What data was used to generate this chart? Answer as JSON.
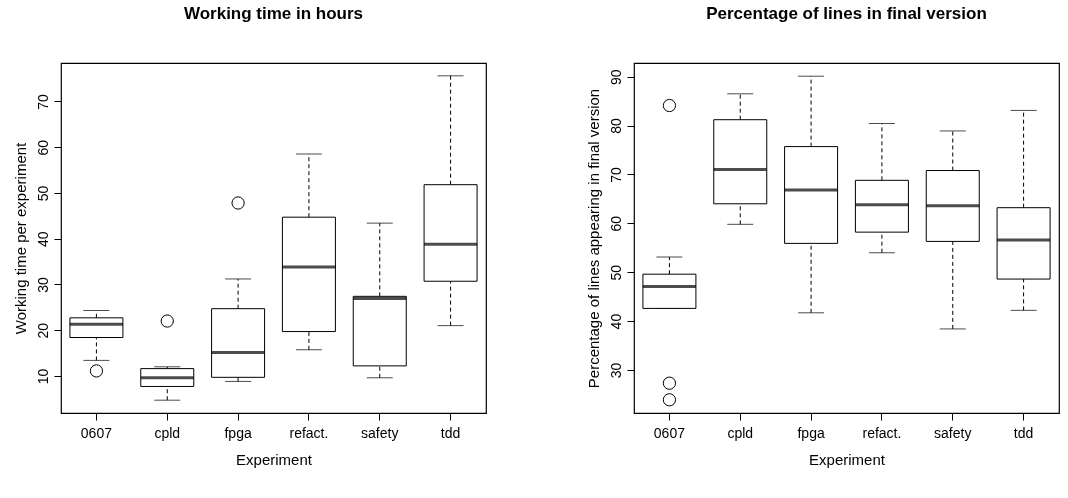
{
  "chart_data": [
    {
      "type": "box",
      "title": "Working time in hours",
      "xlabel": "Experiment",
      "ylabel": "Working time per experiment",
      "categories": [
        "0607",
        "cpld",
        "fpga",
        "refact.",
        "safety",
        "tdd"
      ],
      "ylim": [
        1.9,
        78.4
      ],
      "yticks": [
        10,
        20,
        30,
        40,
        50,
        60,
        70
      ],
      "boxes": [
        {
          "low": 13.4,
          "q1": 18.4,
          "median": 21.3,
          "q3": 22.7,
          "high": 24.3,
          "outliers": [
            11.1
          ]
        },
        {
          "low": 4.7,
          "q1": 7.7,
          "median": 9.6,
          "q3": 11.6,
          "high": 12.0,
          "outliers": [
            22.0
          ]
        },
        {
          "low": 8.8,
          "q1": 9.7,
          "median": 15.1,
          "q3": 24.7,
          "high": 31.2,
          "outliers": [
            47.8
          ]
        },
        {
          "low": 15.7,
          "q1": 19.7,
          "median": 33.8,
          "q3": 44.7,
          "high": 58.5
        },
        {
          "low": 9.6,
          "q1": 12.2,
          "median": 26.9,
          "q3": 27.4,
          "high": 43.4
        },
        {
          "low": 21.0,
          "q1": 30.7,
          "median": 38.8,
          "q3": 51.8,
          "high": 75.6
        }
      ]
    },
    {
      "type": "box",
      "title": "Percentage of lines in final version",
      "xlabel": "Experiment",
      "ylabel": "Percentage of lines appearing in final version",
      "categories": [
        "0607",
        "cpld",
        "fpga",
        "refact.",
        "safety",
        "tdd"
      ],
      "ylim": [
        21.2,
        92.8
      ],
      "yticks": [
        30,
        40,
        50,
        60,
        70,
        80,
        90
      ],
      "boxes": [
        {
          "low": 42.6,
          "q1": 42.6,
          "median": 47.1,
          "q3": 49.6,
          "high": 53.1,
          "outliers": [
            84.1,
            27.3,
            23.9
          ]
        },
        {
          "low": 59.8,
          "q1": 64.0,
          "median": 71.0,
          "q3": 81.2,
          "high": 86.5
        },
        {
          "low": 41.7,
          "q1": 55.9,
          "median": 66.8,
          "q3": 75.7,
          "high": 90.1
        },
        {
          "low": 54.0,
          "q1": 58.2,
          "median": 63.8,
          "q3": 68.8,
          "high": 80.4
        },
        {
          "low": 38.4,
          "q1": 56.3,
          "median": 63.6,
          "q3": 70.8,
          "high": 78.9
        },
        {
          "low": 42.2,
          "q1": 48.6,
          "median": 56.6,
          "q3": 63.2,
          "high": 83.1
        }
      ]
    }
  ]
}
